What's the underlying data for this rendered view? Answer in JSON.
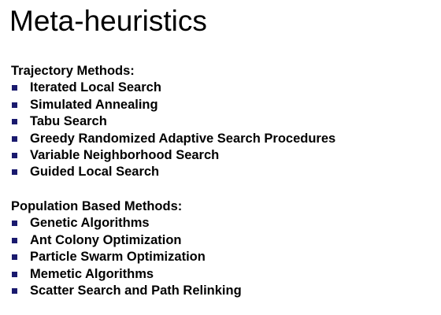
{
  "title": "Meta-heuristics",
  "bullet_color": "#1a1a6e",
  "sections": [
    {
      "heading": "Trajectory Methods:",
      "items": [
        "Iterated Local Search",
        "Simulated Annealing",
        "Tabu Search",
        "Greedy Randomized Adaptive Search Procedures",
        "Variable Neighborhood Search",
        "Guided Local Search"
      ]
    },
    {
      "heading": "Population Based Methods:",
      "items": [
        "Genetic Algorithms",
        "Ant Colony Optimization",
        "Particle Swarm Optimization",
        "Memetic Algorithms",
        "Scatter Search and Path Relinking"
      ]
    }
  ]
}
